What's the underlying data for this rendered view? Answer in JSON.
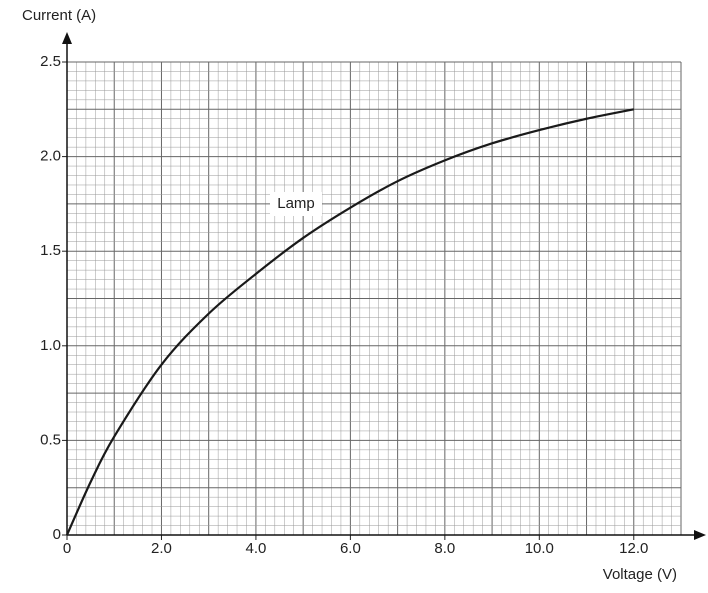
{
  "chart_data": {
    "type": "line",
    "x_label": "Voltage (V)",
    "y_label": "Current (A)",
    "annotation": "Lamp",
    "xlim": [
      0,
      13
    ],
    "ylim": [
      0,
      2.5
    ],
    "xticks": [
      0,
      {
        "value": 2,
        "label": "2.0"
      },
      {
        "value": 4,
        "label": "4.0"
      },
      {
        "value": 6,
        "label": "6.0"
      },
      {
        "value": 8,
        "label": "8.0"
      },
      {
        "value": 10,
        "label": "10.0"
      },
      {
        "value": 12,
        "label": "12.0"
      }
    ],
    "yticks": [
      0,
      0.5,
      {
        "value": 1,
        "label": "1.0"
      },
      1.5,
      {
        "value": 2,
        "label": "2.0"
      },
      2.5
    ],
    "grid": true,
    "x": [
      0,
      0.5,
      1,
      2,
      3,
      4,
      5,
      6,
      7,
      8,
      9,
      10,
      11,
      12
    ],
    "series": [
      {
        "name": "Lamp",
        "color": "#1a1a1a",
        "values": [
          0,
          0.28,
          0.52,
          0.9,
          1.17,
          1.38,
          1.57,
          1.73,
          1.87,
          1.98,
          2.07,
          2.14,
          2.2,
          2.25
        ]
      }
    ]
  }
}
